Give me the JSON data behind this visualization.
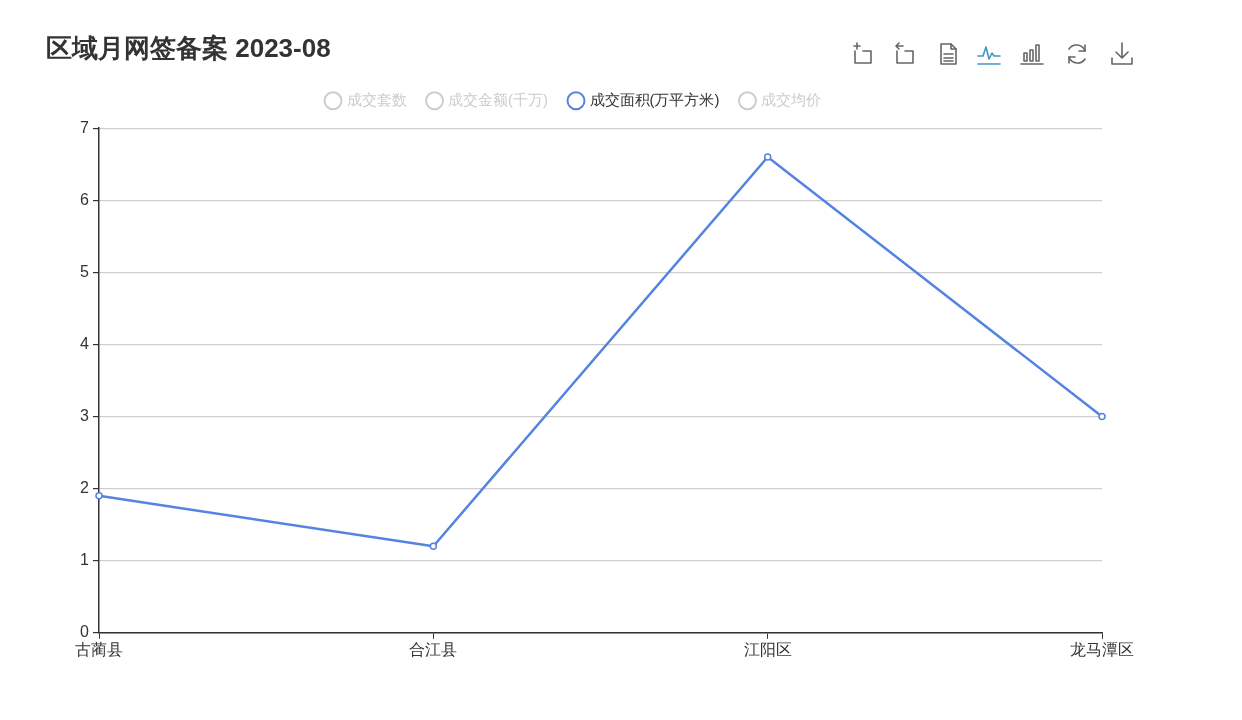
{
  "chart_data": {
    "type": "line",
    "title": "区域月网签备案 2023-08",
    "categories": [
      "古蔺县",
      "合江县",
      "江阳区",
      "龙马潭区"
    ],
    "series": [
      {
        "name": "成交套数",
        "color": "#cccccc",
        "values": [
          null,
          null,
          null,
          null
        ]
      },
      {
        "name": "成交金额(千万)",
        "color": "#cccccc",
        "values": [
          null,
          null,
          null,
          null
        ]
      },
      {
        "name": "成交面积(万平方米)",
        "color": "#5583e0",
        "values": [
          1.9,
          1.2,
          6.6,
          3.0
        ]
      },
      {
        "name": "成交均价",
        "color": "#cccccc",
        "values": [
          null,
          null,
          null,
          null
        ]
      }
    ],
    "ylim": [
      0,
      7
    ],
    "yticks": [
      0,
      1,
      2,
      3,
      4,
      5,
      6,
      7
    ],
    "grid": "y",
    "legend": "top",
    "marker": "circle"
  }
}
